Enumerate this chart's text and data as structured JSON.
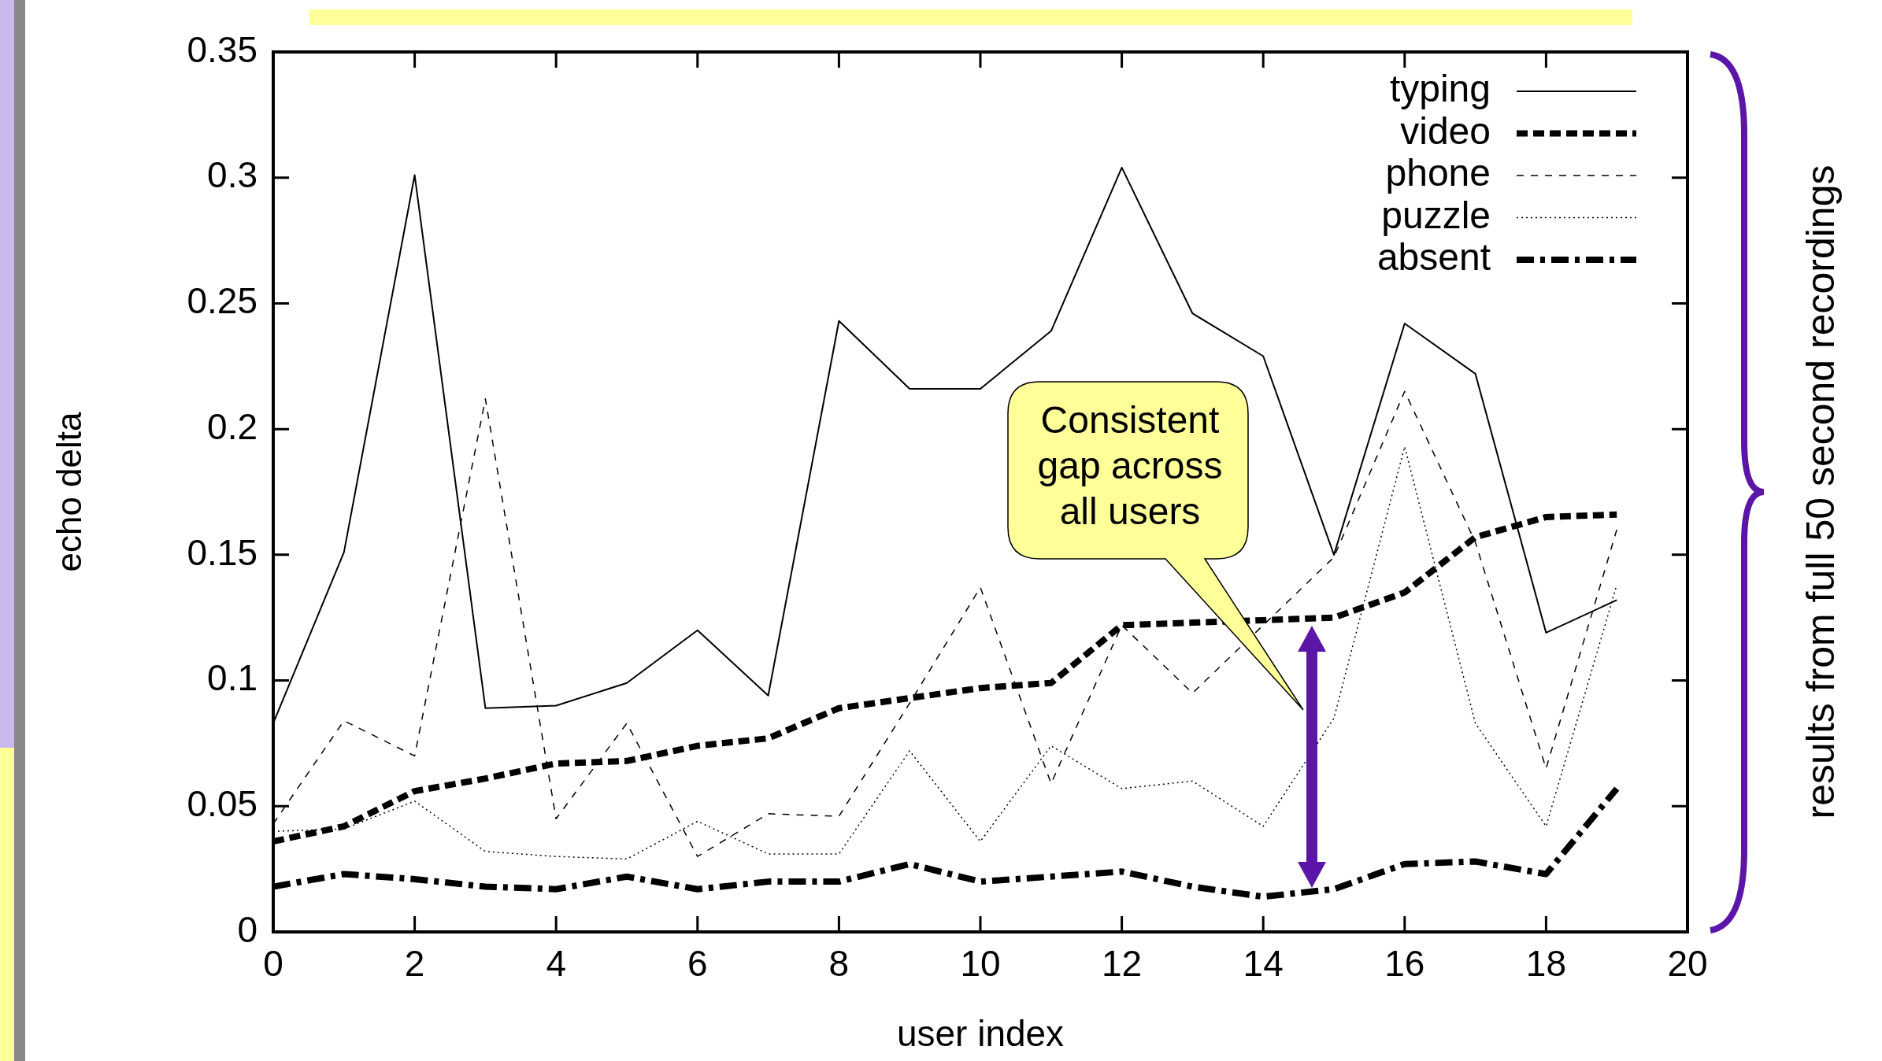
{
  "chart_data": {
    "type": "line",
    "xlabel": "user index",
    "ylabel": "echo delta",
    "x": [
      0,
      1,
      2,
      3,
      4,
      5,
      6,
      7,
      8,
      9,
      10,
      11,
      12,
      13,
      14,
      15,
      16,
      17,
      18,
      19
    ],
    "xlim": [
      0,
      20
    ],
    "xticks": [
      0,
      2,
      4,
      6,
      8,
      10,
      12,
      14,
      16,
      18,
      20
    ],
    "ylim": [
      0,
      0.35
    ],
    "yticks": [
      0,
      0.05,
      0.1,
      0.15,
      0.2,
      0.25,
      0.3,
      0.35
    ],
    "legend": "top right",
    "marker": "none",
    "annotations": [
      "Consistent gap across all users",
      "results from full 50 second recordings"
    ],
    "series": [
      {
        "name": "typing",
        "color": "#000000",
        "line_style": "solid",
        "values": [
          0.083,
          0.151,
          0.301,
          0.089,
          0.09,
          0.099,
          0.12,
          0.094,
          0.243,
          0.216,
          0.216,
          0.239,
          0.304,
          0.246,
          0.229,
          0.15,
          0.242,
          0.222,
          0.119,
          0.132
        ]
      },
      {
        "name": "video",
        "color": "#000000",
        "line_style": "dashed-bold",
        "values": [
          0.036,
          0.042,
          0.056,
          0.061,
          0.067,
          0.068,
          0.074,
          0.077,
          0.089,
          0.093,
          0.097,
          0.099,
          0.122,
          0.123,
          0.124,
          0.125,
          0.135,
          0.157,
          0.165,
          0.166
        ]
      },
      {
        "name": "phone",
        "color": "#000000",
        "line_style": "dashed",
        "values": [
          0.043,
          0.084,
          0.07,
          0.212,
          0.045,
          0.083,
          0.03,
          0.047,
          0.046,
          0.091,
          0.137,
          0.059,
          0.122,
          0.095,
          0.122,
          0.149,
          0.215,
          0.155,
          0.065,
          0.16
        ]
      },
      {
        "name": "puzzle",
        "color": "#000000",
        "line_style": "dotted",
        "values": [
          0.04,
          0.041,
          0.052,
          0.032,
          0.03,
          0.029,
          0.044,
          0.031,
          0.031,
          0.072,
          0.036,
          0.074,
          0.057,
          0.06,
          0.042,
          0.085,
          0.193,
          0.083,
          0.042,
          0.138
        ]
      },
      {
        "name": "absent",
        "color": "#000000",
        "line_style": "dashdot-bold",
        "values": [
          0.018,
          0.023,
          0.021,
          0.018,
          0.017,
          0.022,
          0.017,
          0.02,
          0.02,
          0.027,
          0.02,
          0.022,
          0.024,
          0.018,
          0.014,
          0.017,
          0.027,
          0.028,
          0.023,
          0.057
        ]
      }
    ]
  }
}
